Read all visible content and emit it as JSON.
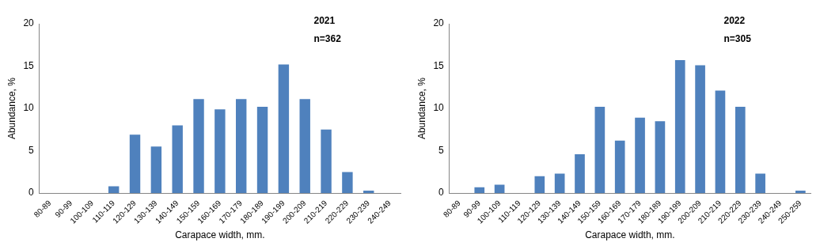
{
  "chart_data": [
    {
      "type": "bar",
      "title": "2021",
      "annotations": [
        "n=362"
      ],
      "x_label": "Carapace width, mm.",
      "y_label": "Abundance, %",
      "categories": [
        "80-89",
        "90-99",
        "100-109",
        "110-119",
        "120-129",
        "130-139",
        "140-149",
        "150-159",
        "160-169",
        "170-179",
        "180-189",
        "190-199",
        "200-209",
        "210-219",
        "220-229",
        "230-239",
        "240-249"
      ],
      "values": [
        0,
        0,
        0,
        0.8,
        6.9,
        5.5,
        8.0,
        11.1,
        9.9,
        11.1,
        10.2,
        15.2,
        11.1,
        7.5,
        2.5,
        0.3,
        0
      ],
      "color": "#4f81bd",
      "ylim": [
        0,
        20
      ],
      "yticks": [
        0,
        5,
        10,
        15,
        20
      ],
      "grid": false
    },
    {
      "type": "bar",
      "title": "2022",
      "annotations": [
        "n=305"
      ],
      "x_label": "Carapace width, mm.",
      "y_label": "Abundance, %",
      "categories": [
        "80-89",
        "90-99",
        "100-109",
        "110-119",
        "120-129",
        "130-139",
        "140-149",
        "150-159",
        "160-169",
        "170-179",
        "180-189",
        "190-199",
        "200-209",
        "210-219",
        "220-229",
        "230-239",
        "240-249",
        "250-259"
      ],
      "values": [
        0,
        0.7,
        1.0,
        0,
        2.0,
        2.3,
        4.6,
        10.2,
        6.2,
        8.9,
        8.5,
        15.7,
        15.1,
        12.1,
        10.2,
        2.3,
        0,
        0.3
      ],
      "color": "#4f81bd",
      "ylim": [
        0,
        20
      ],
      "yticks": [
        0,
        5,
        10,
        15,
        20
      ],
      "grid": false
    }
  ]
}
